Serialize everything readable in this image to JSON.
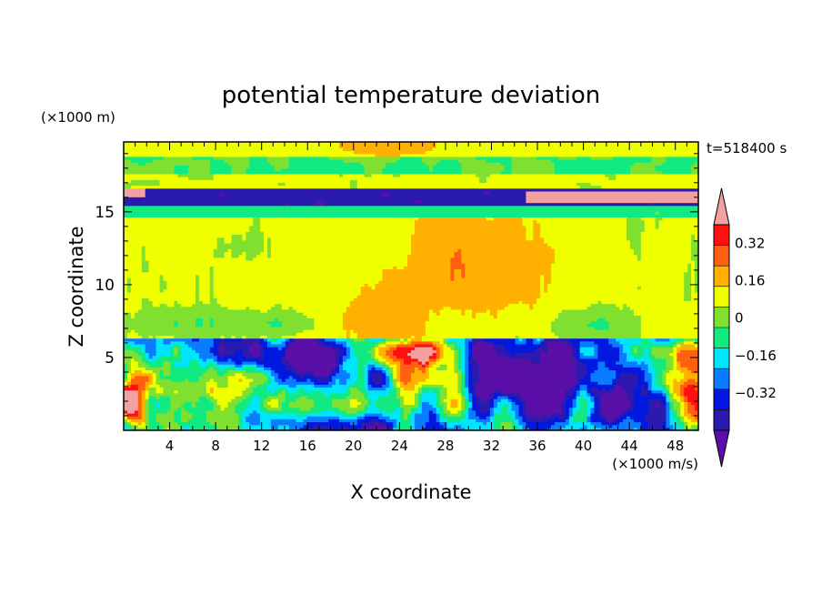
{
  "chart_data": {
    "type": "heatmap",
    "title": "potential temperature deviation",
    "xlabel": "X coordinate",
    "ylabel": "Z coordinate",
    "x_unit": "(×1000 m/s)",
    "y_unit": "(×1000 m)",
    "time_label": "t=518400 s",
    "xlim": [
      0,
      50
    ],
    "ylim": [
      0,
      19.8
    ],
    "x_ticks": [
      4,
      8,
      12,
      16,
      20,
      24,
      28,
      32,
      36,
      40,
      44,
      48
    ],
    "y_ticks": [
      5,
      10,
      15
    ],
    "colorbar": {
      "levels": [
        -0.48,
        -0.4,
        -0.32,
        -0.24,
        -0.16,
        -0.08,
        0,
        0.08,
        0.16,
        0.24,
        0.32,
        0.4
      ],
      "labels": [
        "−0.32",
        "−0.16",
        "0",
        "0.16",
        "0.32"
      ],
      "label_values": [
        -0.32,
        -0.16,
        0,
        0.16,
        0.32
      ],
      "colors": [
        "#5a10a8",
        "#2a1ab0",
        "#0018e0",
        "#0a7cff",
        "#00e4ff",
        "#10ea80",
        "#80e030",
        "#f0ff00",
        "#ffb000",
        "#ff6010",
        "#ff1010",
        "#f4a0a0"
      ],
      "extend": "both"
    },
    "regions": [
      {
        "name": "background",
        "value": 0.02
      },
      {
        "name": "upper-cyan-band",
        "x": [
          0,
          50
        ],
        "y": [
          17.8,
          18.8
        ],
        "value": -0.1
      },
      {
        "name": "top-yellow-patch",
        "x": [
          18,
          28
        ],
        "y": [
          18.4,
          19.8
        ],
        "value": 0.14
      },
      {
        "name": "tropopause-negative-band",
        "x": [
          0,
          50
        ],
        "y": [
          15.4,
          16.6
        ],
        "value": -0.4
      },
      {
        "name": "tropopause-positive-anomaly",
        "x": [
          36,
          50
        ],
        "y": [
          15.6,
          16.5
        ],
        "value": 0.44
      },
      {
        "name": "cyan-layer-below-tropopause",
        "x": [
          0,
          50
        ],
        "y": [
          14.6,
          15.3
        ],
        "value": -0.1
      },
      {
        "name": "mid-level-yellow-wedge",
        "x": [
          24,
          40
        ],
        "y": [
          8,
          14
        ],
        "value": 0.12
      },
      {
        "name": "lower-mixed-layer",
        "x": [
          0,
          50
        ],
        "y": [
          0,
          6
        ],
        "value": -0.3
      },
      {
        "name": "warm-bubble",
        "x": [
          21,
          27
        ],
        "y": [
          4.8,
          6.3
        ],
        "value": 0.44
      },
      {
        "name": "left-warm-column",
        "x": [
          0,
          3
        ],
        "y": [
          0,
          6
        ],
        "value": 0.32
      },
      {
        "name": "right-warm-column",
        "x": [
          47,
          50
        ],
        "y": [
          0,
          6
        ],
        "value": 0.32
      }
    ]
  }
}
